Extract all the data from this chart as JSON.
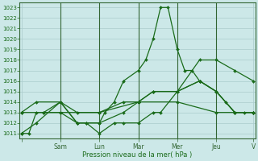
{
  "xlabel": "Pression niveau de la mer( hPa )",
  "background_color": "#cce8e8",
  "grid_color": "#aacccc",
  "line_color": "#1a6b1a",
  "spine_color": "#336633",
  "ylim": [
    1010.5,
    1023.5
  ],
  "yticks": [
    1011,
    1012,
    1013,
    1014,
    1015,
    1016,
    1017,
    1018,
    1019,
    1020,
    1021,
    1022,
    1023
  ],
  "xlim": [
    -2,
    252
  ],
  "day_tick_positions": [
    0,
    42,
    84,
    126,
    168,
    210,
    250
  ],
  "day_labels": [
    "",
    "Sam",
    "Lun",
    "Mar",
    "Mer",
    "Jeu",
    "V"
  ],
  "vline_positions": [
    42,
    84,
    126,
    168,
    210
  ],
  "series": [
    {
      "x": [
        0,
        8,
        16,
        24,
        42,
        60,
        70,
        84,
        90,
        100,
        110,
        126,
        134,
        142,
        150,
        158,
        168,
        176,
        184,
        192,
        210,
        220,
        230,
        240,
        250
      ],
      "y": [
        1011,
        1011,
        1013,
        1013,
        1013,
        1012,
        1012,
        1012,
        1013,
        1014,
        1016,
        1017,
        1018,
        1020,
        1023,
        1023,
        1019,
        1017,
        1017,
        1016,
        1015,
        1014,
        1013,
        1013,
        1013
      ]
    },
    {
      "x": [
        0,
        42,
        84,
        126,
        168,
        210,
        250
      ],
      "y": [
        1013,
        1013,
        1013,
        1014,
        1014,
        1013,
        1013
      ]
    },
    {
      "x": [
        0,
        16,
        42,
        60,
        84,
        110,
        126,
        142,
        168,
        192,
        210,
        230,
        250
      ],
      "y": [
        1013,
        1014,
        1014,
        1013,
        1013,
        1014,
        1014,
        1015,
        1015,
        1016,
        1015,
        1013,
        1013
      ]
    },
    {
      "x": [
        0,
        16,
        42,
        60,
        84,
        110,
        126,
        142,
        168,
        192,
        210,
        230,
        250
      ],
      "y": [
        1011,
        1012,
        1014,
        1012,
        1012,
        1013,
        1014,
        1015,
        1015,
        1016,
        1015,
        1013,
        1013
      ]
    },
    {
      "x": [
        24,
        42,
        60,
        70,
        84,
        100,
        110,
        126,
        142,
        150,
        168,
        192,
        210,
        230,
        250
      ],
      "y": [
        1013,
        1014,
        1012,
        1012,
        1011,
        1012,
        1012,
        1012,
        1013,
        1013,
        1015,
        1018,
        1018,
        1017,
        1016
      ]
    }
  ]
}
